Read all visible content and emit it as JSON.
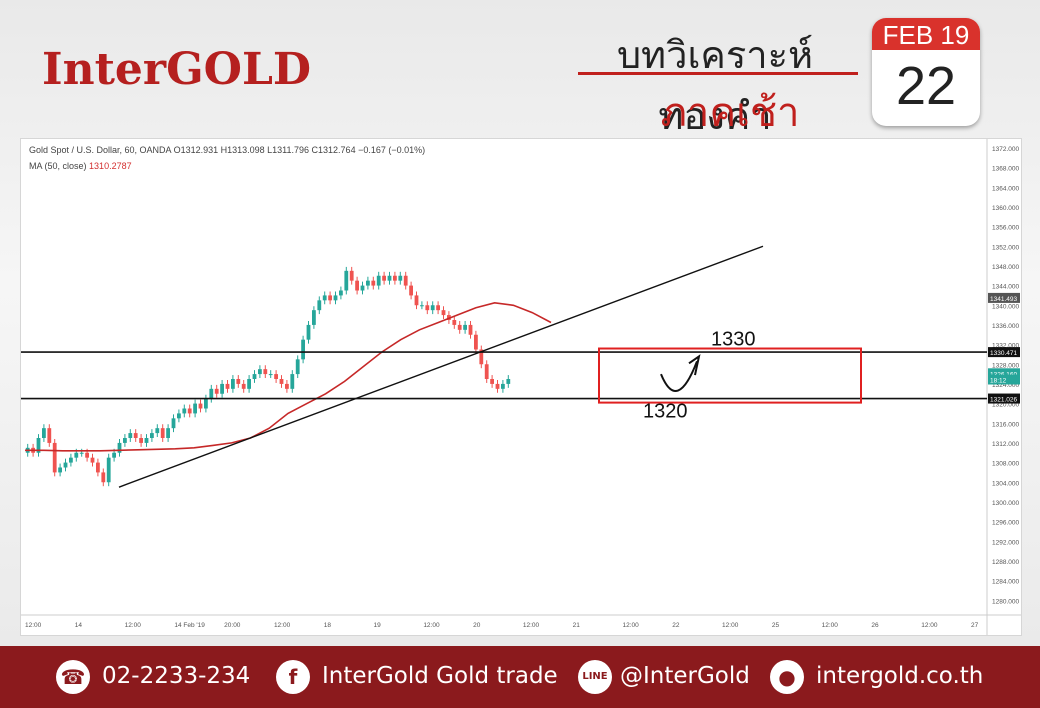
{
  "header": {
    "logo": "InterGOLD",
    "title_line1": "บทวิเคราะห์ทองคำ",
    "title_line2": "ภาคเช้า",
    "calendar_month": "FEB 19",
    "calendar_day": "22"
  },
  "chart_header": {
    "symbol": "Gold Spot / U.S. Dollar, 60, OANDA",
    "ohlc": "O1312.931 H1313.098 L1311.796 C1312.764 −0.167 (−0.01%)",
    "ma_label": "MA (50, close)",
    "ma_value": "1310.2787"
  },
  "chart_data": {
    "type": "candlestick",
    "x_labels": [
      "12:00",
      "14",
      "12:00",
      "14 Feb '19",
      "20:00",
      "12:00",
      "18",
      "19",
      "12:00",
      "20",
      "12:00",
      "21",
      "12:00",
      "22",
      "12:00",
      "25",
      "12:00",
      "26",
      "12:00",
      "27"
    ],
    "y_ticks": [
      1280,
      1284,
      1288,
      1292,
      1296,
      1300,
      1304,
      1308,
      1312,
      1316,
      1320,
      1324,
      1328,
      1332,
      1336,
      1340,
      1344,
      1348,
      1352,
      1356,
      1360,
      1364,
      1368,
      1372
    ],
    "ylim": [
      1277,
      1373
    ],
    "price_labels": [
      "1341.493",
      "1330.471",
      "1326.160",
      "18:12",
      "1321.026"
    ],
    "closes": [
      1311,
      1310,
      1313,
      1315,
      1312,
      1306,
      1307,
      1308,
      1309,
      1310,
      1310,
      1309,
      1308,
      1306,
      1304,
      1309,
      1310,
      1312,
      1313,
      1314,
      1313,
      1312,
      1313,
      1314,
      1315,
      1313,
      1315,
      1317,
      1318,
      1319,
      1318,
      1320,
      1319,
      1321,
      1323,
      1322,
      1324,
      1323,
      1325,
      1324,
      1323,
      1325,
      1326,
      1327,
      1326,
      1326,
      1325,
      1324,
      1323,
      1326,
      1329,
      1333,
      1336,
      1339,
      1341,
      1342,
      1341,
      1342,
      1343,
      1347,
      1345,
      1343,
      1344,
      1345,
      1344,
      1346,
      1345,
      1346,
      1345,
      1346,
      1344,
      1342,
      1340,
      1340,
      1339,
      1340,
      1339,
      1338,
      1337,
      1336,
      1335,
      1336,
      1334,
      1331,
      1328,
      1325,
      1324,
      1323,
      1324,
      1325
    ],
    "ma_line": [
      1310.5,
      1310.5,
      1310.4,
      1310.4,
      1310.4,
      1310.5,
      1310.6,
      1310.7,
      1310.8,
      1311,
      1311.5,
      1312,
      1313,
      1315,
      1318,
      1320,
      1322,
      1324.5,
      1327.5,
      1330.5,
      1333,
      1335,
      1336.5,
      1338,
      1339.5,
      1340.5,
      1340,
      1338.5,
      1336.5
    ],
    "annotations": [
      "1330",
      "1320"
    ],
    "levels": [
      1330.47,
      1321.03
    ],
    "trendline": [
      1303,
      1352
    ],
    "grid": false,
    "legend_position": "top-left"
  },
  "footer": {
    "phone": "02-2233-234",
    "facebook": "InterGold Gold trade",
    "line": "@InterGold",
    "website": "intergold.co.th"
  }
}
